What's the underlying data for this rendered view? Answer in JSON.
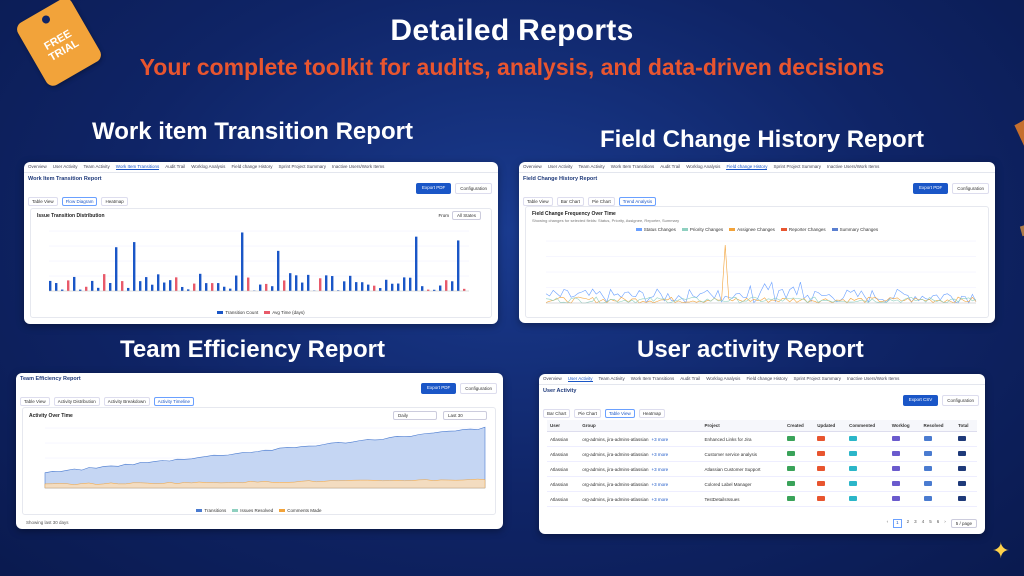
{
  "header": {
    "title": "Detailed Reports",
    "subtitle": "Your complete toolkit for audits, analysis, and data-driven decisions"
  },
  "badge": {
    "line1": "FREE",
    "line2": "TRIAL"
  },
  "sections": {
    "transition": "Work item Transition Report",
    "field": "Field Change History Report",
    "team": "Team Efficiency Report",
    "user": "User activity Report"
  },
  "tabs": [
    "Overview",
    "User Activity",
    "Team Activity",
    "Work Item Transitions",
    "Audit Trail",
    "Worklog Analysis",
    "Field change History",
    "Sprint Project Summary",
    "Inactive Users/Work Items"
  ],
  "transition_card": {
    "title": "Work Item Transition Report",
    "export": "Export PDF",
    "config": "Configuration",
    "views": [
      "Table View",
      "Flow Diagram",
      "Heatmap"
    ],
    "chart_title": "Issue Transition Distribution",
    "from_label": "From",
    "from_value": "All States",
    "legend": [
      "Transition Count",
      "Avg Time (days)"
    ]
  },
  "field_card": {
    "title": "Field Change History Report",
    "export": "Export PDF",
    "config": "Configuration",
    "views": [
      "Table View",
      "Bar Chart",
      "Pie Chart",
      "Trend Analysis"
    ],
    "chart_title": "Field Change Frequency Over Time",
    "chart_sub": "Showing changes for selected fields: Status, Priority, Assignee, Reporter, Summary",
    "legend": [
      "Status Changes",
      "Priority Changes",
      "Assignee Changes",
      "Reporter Changes",
      "Summary Changes"
    ]
  },
  "team_card": {
    "title": "Team Efficiency Report",
    "export": "Export PDF",
    "config": "Configuration",
    "views": [
      "Table View",
      "Activity Distribution",
      "Activity Breakdown",
      "Activity Timeline"
    ],
    "chart_title": "Activity Over Time",
    "period": "Daily",
    "range": "Last 30",
    "legend": [
      "Transitions",
      "Issues Resolved",
      "Comments Made"
    ],
    "footer": "Showing last 30 days"
  },
  "user_card": {
    "title": "User Activity",
    "export": "Export CSV",
    "config": "Configuration",
    "views": [
      "Bar Chart",
      "Pie Chart",
      "Table View",
      "Heatmap"
    ],
    "columns": [
      "User",
      "Group",
      "Project",
      "Created",
      "Updated",
      "Commented",
      "Worklog",
      "Resolved",
      "Total"
    ],
    "rows": [
      {
        "user": "Atlassian",
        "group": "org-admins, jira-admins-atlassian",
        "more": "+3 more",
        "project": "Enhanced Links for Jira",
        "c1": "#3aa35a",
        "c2": "#e8552f",
        "c3": "#2bb6c9",
        "c4": "#6a5acd",
        "c5": "#4a7bd0",
        "c6": "#1f3a7a"
      },
      {
        "user": "Atlassian",
        "group": "org-admins, jira-admins-atlassian",
        "more": "+3 more",
        "project": "Customer service analysis",
        "c1": "#3aa35a",
        "c2": "#e8552f",
        "c3": "#2bb6c9",
        "c4": "#6a5acd",
        "c5": "#4a7bd0",
        "c6": "#1f3a7a"
      },
      {
        "user": "Atlassian",
        "group": "org-admins, jira-admins-atlassian",
        "more": "+3 more",
        "project": "Atlassian Customer Support",
        "c1": "#3aa35a",
        "c2": "#e8552f",
        "c3": "#2bb6c9",
        "c4": "#6a5acd",
        "c5": "#4a7bd0",
        "c6": "#1f3a7a"
      },
      {
        "user": "Atlassian",
        "group": "org-admins, jira-admins-atlassian",
        "more": "+3 more",
        "project": "Colored Label Manager",
        "c1": "#3aa35a",
        "c2": "#e8552f",
        "c3": "#2bb6c9",
        "c4": "#6a5acd",
        "c5": "#4a7bd0",
        "c6": "#1f3a7a"
      },
      {
        "user": "Atlassian",
        "group": "org-admins, jira-admins-atlassian",
        "more": "+3 more",
        "project": "TestDetailsIssues",
        "c1": "#3aa35a",
        "c2": "#e8552f",
        "c3": "#2bb6c9",
        "c4": "#6a5acd",
        "c5": "#4a7bd0",
        "c6": "#1f3a7a"
      }
    ],
    "pages": [
      "1",
      "2",
      "3",
      "4",
      "5",
      "6"
    ],
    "page_size": "5 / page"
  },
  "colors": {
    "background": "#0f2466",
    "accent": "#e8552f",
    "primary": "#1a56c7",
    "tag": "#f2a33a"
  }
}
